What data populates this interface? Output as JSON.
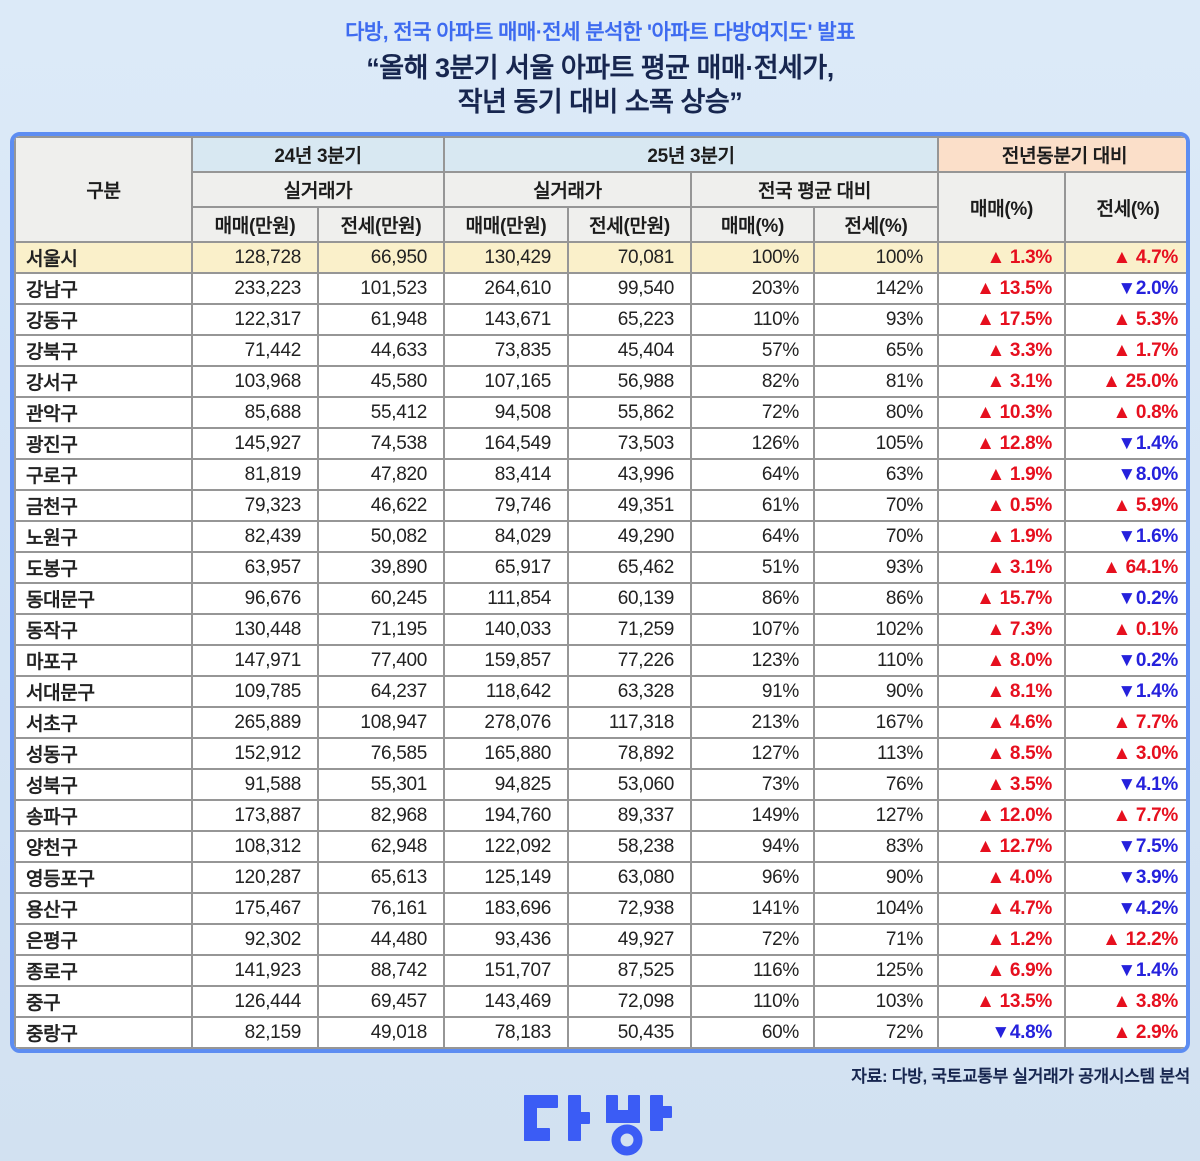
{
  "title": {
    "kicker": "다방, 전국 아파트 매매·전세 분석한 '아파트 다방여지도' 발표",
    "headline_line1": "“올해 3분기 서울 아파트 평균 매매·전세가,",
    "headline_line2": "작년 동기 대비 소폭 상승”"
  },
  "chart_data": {
    "type": "table",
    "title": "서울 아파트 평균 매매·전세가 (24년 3분기 vs 25년 3분기)",
    "headers": {
      "gubun": "구분",
      "q24": "24년 3분기",
      "q25": "25년 3분기",
      "yoy": "전년동분기 대비",
      "actual": "실거래가",
      "vs_national": "전국 평균 대비",
      "sale_amt": "매매(만원)",
      "jeonse_amt": "전세(만원)",
      "sale_pct": "매매(%)",
      "jeonse_pct": "전세(%)"
    },
    "column_groups": [
      {
        "label": "24년 3분기",
        "sub": "실거래가",
        "columns": [
          "매매(만원)",
          "전세(만원)"
        ]
      },
      {
        "label": "25년 3분기",
        "sub": [
          "실거래가",
          "전국 평균 대비"
        ],
        "columns": [
          "매매(만원)",
          "전세(만원)",
          "매매(%)",
          "전세(%)"
        ]
      },
      {
        "label": "전년동분기 대비",
        "columns": [
          "매매(%)",
          "전세(%)"
        ]
      }
    ],
    "rows": [
      [
        "서울시",
        "128,728",
        "66,950",
        "130,429",
        "70,081",
        "100%",
        "100%",
        "▲ 1.3%",
        "▲ 4.7%"
      ],
      [
        "강남구",
        "233,223",
        "101,523",
        "264,610",
        "99,540",
        "203%",
        "142%",
        "▲ 13.5%",
        "▼2.0%"
      ],
      [
        "강동구",
        "122,317",
        "61,948",
        "143,671",
        "65,223",
        "110%",
        "93%",
        "▲ 17.5%",
        "▲ 5.3%"
      ],
      [
        "강북구",
        "71,442",
        "44,633",
        "73,835",
        "45,404",
        "57%",
        "65%",
        "▲ 3.3%",
        "▲ 1.7%"
      ],
      [
        "강서구",
        "103,968",
        "45,580",
        "107,165",
        "56,988",
        "82%",
        "81%",
        "▲ 3.1%",
        "▲ 25.0%"
      ],
      [
        "관악구",
        "85,688",
        "55,412",
        "94,508",
        "55,862",
        "72%",
        "80%",
        "▲ 10.3%",
        "▲ 0.8%"
      ],
      [
        "광진구",
        "145,927",
        "74,538",
        "164,549",
        "73,503",
        "126%",
        "105%",
        "▲ 12.8%",
        "▼1.4%"
      ],
      [
        "구로구",
        "81,819",
        "47,820",
        "83,414",
        "43,996",
        "64%",
        "63%",
        "▲ 1.9%",
        "▼8.0%"
      ],
      [
        "금천구",
        "79,323",
        "46,622",
        "79,746",
        "49,351",
        "61%",
        "70%",
        "▲ 0.5%",
        "▲ 5.9%"
      ],
      [
        "노원구",
        "82,439",
        "50,082",
        "84,029",
        "49,290",
        "64%",
        "70%",
        "▲ 1.9%",
        "▼1.6%"
      ],
      [
        "도봉구",
        "63,957",
        "39,890",
        "65,917",
        "65,462",
        "51%",
        "93%",
        "▲ 3.1%",
        "▲ 64.1%"
      ],
      [
        "동대문구",
        "96,676",
        "60,245",
        "111,854",
        "60,139",
        "86%",
        "86%",
        "▲ 15.7%",
        "▼0.2%"
      ],
      [
        "동작구",
        "130,448",
        "71,195",
        "140,033",
        "71,259",
        "107%",
        "102%",
        "▲ 7.3%",
        "▲ 0.1%"
      ],
      [
        "마포구",
        "147,971",
        "77,400",
        "159,857",
        "77,226",
        "123%",
        "110%",
        "▲ 8.0%",
        "▼0.2%"
      ],
      [
        "서대문구",
        "109,785",
        "64,237",
        "118,642",
        "63,328",
        "91%",
        "90%",
        "▲ 8.1%",
        "▼1.4%"
      ],
      [
        "서초구",
        "265,889",
        "108,947",
        "278,076",
        "117,318",
        "213%",
        "167%",
        "▲ 4.6%",
        "▲ 7.7%"
      ],
      [
        "성동구",
        "152,912",
        "76,585",
        "165,880",
        "78,892",
        "127%",
        "113%",
        "▲ 8.5%",
        "▲ 3.0%"
      ],
      [
        "성북구",
        "91,588",
        "55,301",
        "94,825",
        "53,060",
        "73%",
        "76%",
        "▲ 3.5%",
        "▼4.1%"
      ],
      [
        "송파구",
        "173,887",
        "82,968",
        "194,760",
        "89,337",
        "149%",
        "127%",
        "▲ 12.0%",
        "▲ 7.7%"
      ],
      [
        "양천구",
        "108,312",
        "62,948",
        "122,092",
        "58,238",
        "94%",
        "83%",
        "▲ 12.7%",
        "▼7.5%"
      ],
      [
        "영등포구",
        "120,287",
        "65,613",
        "125,149",
        "63,080",
        "96%",
        "90%",
        "▲ 4.0%",
        "▼3.9%"
      ],
      [
        "용산구",
        "175,467",
        "76,161",
        "183,696",
        "72,938",
        "141%",
        "104%",
        "▲ 4.7%",
        "▼4.2%"
      ],
      [
        "은평구",
        "92,302",
        "44,480",
        "93,436",
        "49,927",
        "72%",
        "71%",
        "▲ 1.2%",
        "▲ 12.2%"
      ],
      [
        "종로구",
        "141,923",
        "88,742",
        "151,707",
        "87,525",
        "116%",
        "125%",
        "▲ 6.9%",
        "▼1.4%"
      ],
      [
        "중구",
        "126,444",
        "69,457",
        "143,469",
        "72,098",
        "110%",
        "103%",
        "▲ 13.5%",
        "▲ 3.8%"
      ],
      [
        "중랑구",
        "82,159",
        "49,018",
        "78,183",
        "50,435",
        "60%",
        "72%",
        "▼4.8%",
        "▲ 2.9%"
      ]
    ]
  },
  "footer": {
    "source": "자료: 다방, 국토교통부 실거래가 공개시스템 분석",
    "logo_text": "다방"
  },
  "colors": {
    "red": "#e60f1e",
    "blue": "#2521dc",
    "tborder": "#5d8df2",
    "hblue": "#d8e8f2",
    "hpeach": "#fbdfc9",
    "seoul": "#faf0ca",
    "kicker": "#3e6bf0",
    "navy": "#17264f"
  }
}
